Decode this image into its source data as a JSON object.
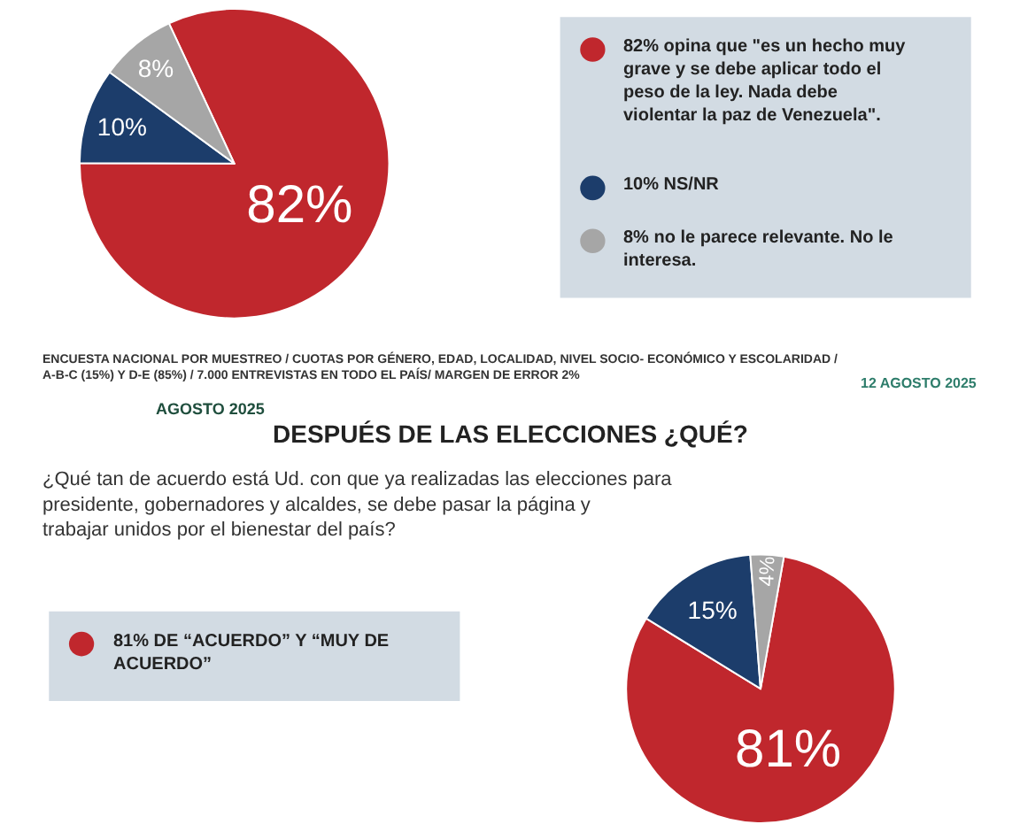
{
  "chart_data": [
    {
      "type": "pie",
      "categories": [
        "82% opina que \"es un hecho muy grave y se debe aplicar todo el peso de la ley. Nada debe violentar la paz de Venezuela\".",
        "10% NS/NR",
        "8% no le parece relevante. No le interesa."
      ],
      "values": [
        82,
        10,
        8
      ],
      "colors": [
        "#c0272d",
        "#1c3d6b",
        "#a6a6a6"
      ],
      "value_labels": [
        "82%",
        "10%",
        "8%"
      ],
      "legend": "right",
      "annotations": [
        "ENCUESTA NACIONAL POR MUESTREO / CUOTAS POR GÉNERO, EDAD, LOCALIDAD, NIVEL SOCIO- ECONÓMICO Y ESCOLARIDAD / A-B-C (15%) Y D-E (85%) / 7.000 ENTREVISTAS EN TODO EL PAÍS/ MARGEN DE ERROR 2%",
        "12 AGOSTO 2025",
        "AGOSTO 2025"
      ]
    },
    {
      "type": "pie",
      "title": "DESPUÉS DE LAS ELECCIONES ¿QUÉ?",
      "subtitle": "¿Qué tan de acuerdo está Ud. con que ya realizadas las elecciones para presidente, gobernadores y alcaldes, se debe pasar la página y trabajar unidos por el bienestar del país?",
      "categories": [
        "81% DE “ACUERDO” Y “MUY DE ACUERDO”",
        null,
        null
      ],
      "values": [
        81,
        15,
        4
      ],
      "colors": [
        "#c0272d",
        "#1c3d6b",
        "#a6a6a6"
      ],
      "value_labels": [
        "81%",
        "15%",
        "4%"
      ],
      "legend": "left"
    }
  ]
}
